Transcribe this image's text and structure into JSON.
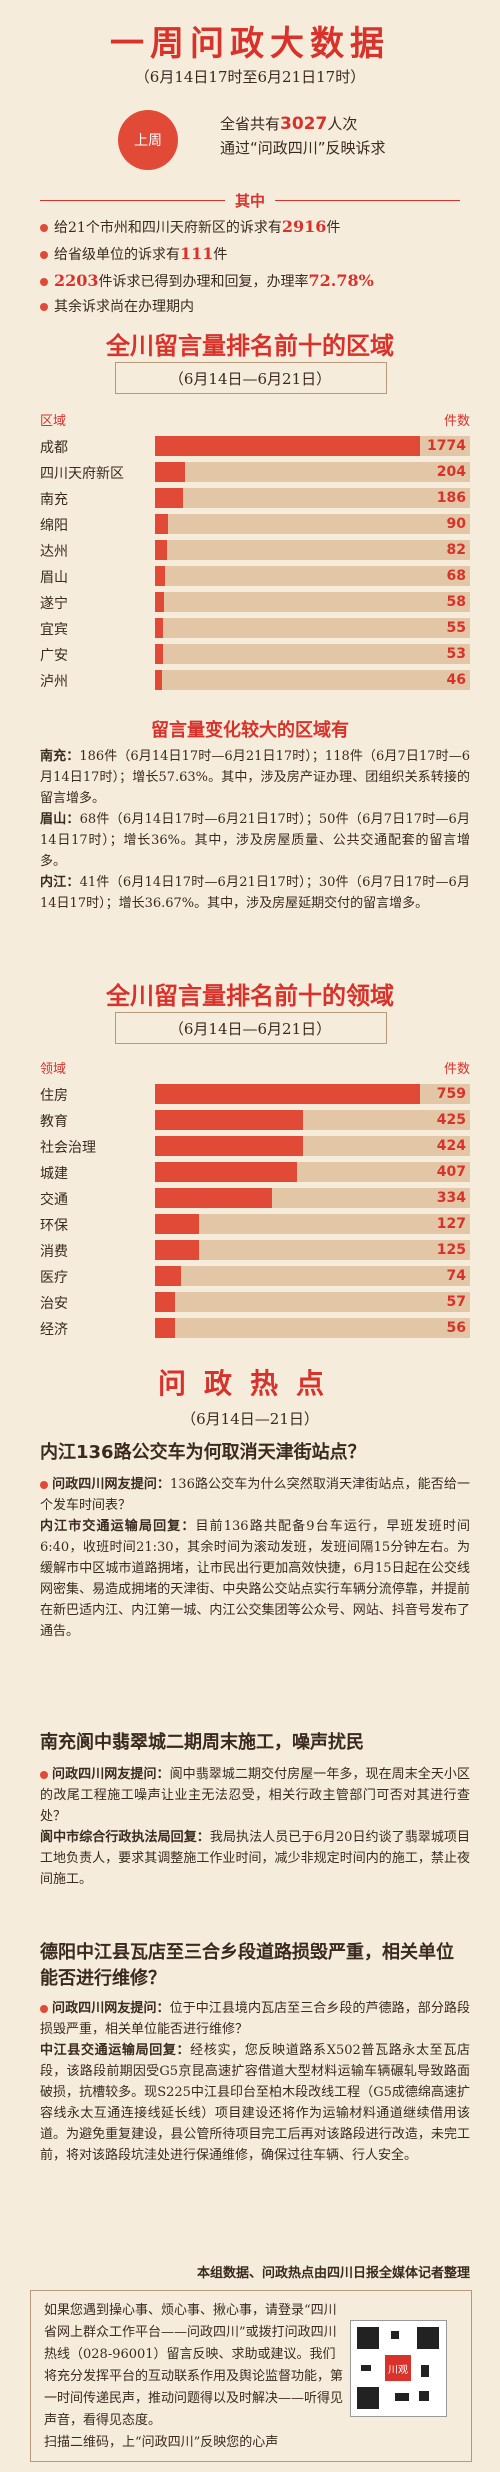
{
  "header": {
    "title": "一周问政大数据",
    "subtitle": "（6月14日17时至6月21日17时）",
    "badge": "上周",
    "summary_pre": "全省共有",
    "summary_num": "3027",
    "summary_post": "人次",
    "summary_line2": "通过“问政四川”反映诉求"
  },
  "facts": {
    "label": "其中",
    "items": [
      {
        "pre": "给21个市州和四川天府新区的诉求有",
        "num": "2916",
        "post": "件"
      },
      {
        "pre": "给省级单位的诉求有",
        "num": "111",
        "post": "件"
      },
      {
        "pre": "",
        "num": "2203",
        "post": "件诉求已得到办理和回复，办理率",
        "num2": "72.78%"
      },
      {
        "pre": "其余诉求尚在办理期内",
        "num": "",
        "post": ""
      }
    ]
  },
  "regions": {
    "title": "全川留言量排名前十的区域",
    "date": "（6月14日—6月21日）",
    "col_left": "区域",
    "col_right": "件数",
    "items": [
      {
        "name": "成都",
        "value": 1774
      },
      {
        "name": "四川天府新区",
        "value": 204
      },
      {
        "name": "南充",
        "value": 186
      },
      {
        "name": "绵阳",
        "value": 90
      },
      {
        "name": "达州",
        "value": 82
      },
      {
        "name": "眉山",
        "value": 68
      },
      {
        "name": "遂宁",
        "value": 58
      },
      {
        "name": "宜宾",
        "value": 55
      },
      {
        "name": "广安",
        "value": 53
      },
      {
        "name": "泸州",
        "value": 46
      }
    ]
  },
  "changes": {
    "title": "留言量变化较大的区域有",
    "items": [
      {
        "city": "南充：",
        "text": "186件（6月14日17时—6月21日17时）；118件（6月7日17时—6月14日17时）；增长57.63%。其中，涉及房产证办理、团组织关系转接的留言增多。"
      },
      {
        "city": "眉山：",
        "text": "68件（6月14日17时—6月21日17时）；50件（6月7日17时—6月14日17时）；增长36%。其中，涉及房屋质量、公共交通配套的留言增多。"
      },
      {
        "city": "内江：",
        "text": "41件（6月14日17时—6月21日17时）；30件（6月7日17时—6月14日17时）；增长36.67%。其中，涉及房屋延期交付的留言增多。"
      }
    ]
  },
  "fields": {
    "title": "全川留言量排名前十的领域",
    "date": "（6月14日—6月21日）",
    "col_left": "领域",
    "col_right": "件数",
    "items": [
      {
        "name": "住房",
        "value": 759
      },
      {
        "name": "教育",
        "value": 425
      },
      {
        "name": "社会治理",
        "value": 424
      },
      {
        "name": "城建",
        "value": 407
      },
      {
        "name": "交通",
        "value": 334
      },
      {
        "name": "环保",
        "value": 127
      },
      {
        "name": "消费",
        "value": 125
      },
      {
        "name": "医疗",
        "value": 74
      },
      {
        "name": "治安",
        "value": 57
      },
      {
        "name": "经济",
        "value": 56
      }
    ]
  },
  "hot": {
    "title": "问政热点",
    "date": "（6月14日—21日）",
    "stories": [
      {
        "q": "内江136路公交车为何取消天津街站点？",
        "ask_label": "问政四川网友提问：",
        "ask": "136路公交车为什么突然取消天津街站点，能否给一个发车时间表？",
        "reply_label": "内江市交通运输局回复：",
        "reply": "目前136路共配备9台车运行，早班发班时间6:40，收班时间21:30，其余时间为滚动发班，发班间隔15分钟左右。为缓解市中区城市道路拥堵，让市民出行更加高效快捷，6月15日起在公交线网密集、易造成拥堵的天津街、中央路公交站点实行车辆分流停靠，并提前在新巴适内江、内江第一城、内江公交集团等公众号、网站、抖音号发布了通告。"
      },
      {
        "q": "南充阆中翡翠城二期周末施工，噪声扰民",
        "ask_label": "问政四川网友提问：",
        "ask": "阆中翡翠城二期交付房屋一年多，现在周末全天小区的改尾工程施工噪声让业主无法忍受，相关行政主管部门可否对其进行查处？",
        "reply_label": "阆中市综合行政执法局回复：",
        "reply": "我局执法人员已于6月20日约谈了翡翠城项目工地负责人，要求其调整施工作业时间，减少非规定时间内的施工，禁止夜间施工。"
      },
      {
        "q": "德阳中江县瓦店至三合乡段道路损毁严重，相关单位能否进行维修？",
        "ask_label": "问政四川网友提问：",
        "ask": "位于中江县境内瓦店至三合乡段的芦德路，部分路段损毁严重，相关单位能否进行维修？",
        "reply_label": "中江县交通运输局回复：",
        "reply": "经核实，您反映道路系X502普瓦路永太至瓦店段，该路段前期因受G5京昆高速扩容借道大型材料运输车辆碾轧导致路面破损，抗槽较多。现S225中江县印台至柏木段改线工程（G5成德绵高速扩容线永太互通连接线延长线）项目建设还将作为运输材料通道继续借用该道。为避免重复建设，县公管所待项目完工后再对该路段进行改造，未完工前，将对该路段坑洼处进行保通维修，确保过往车辆、行人安全。"
      }
    ],
    "credit": "本组数据、问政热点由四川日报全媒体记者整理"
  },
  "footer": {
    "text": "如果您遇到操心事、烦心事、揪心事，请登录“四川省网上群众工作平台——问政四川”或拨打问政四川热线（028-96001）留言反映、求助或建议。我们将充分发挥平台的互动联系作用及舆论监督功能，第一时间传递民声，推动问题得以及时解决——听得见声音，看得见态度。",
    "scan": "扫描二维码，上“问政四川”反映您的心声",
    "qr_logo": "川观"
  }
}
